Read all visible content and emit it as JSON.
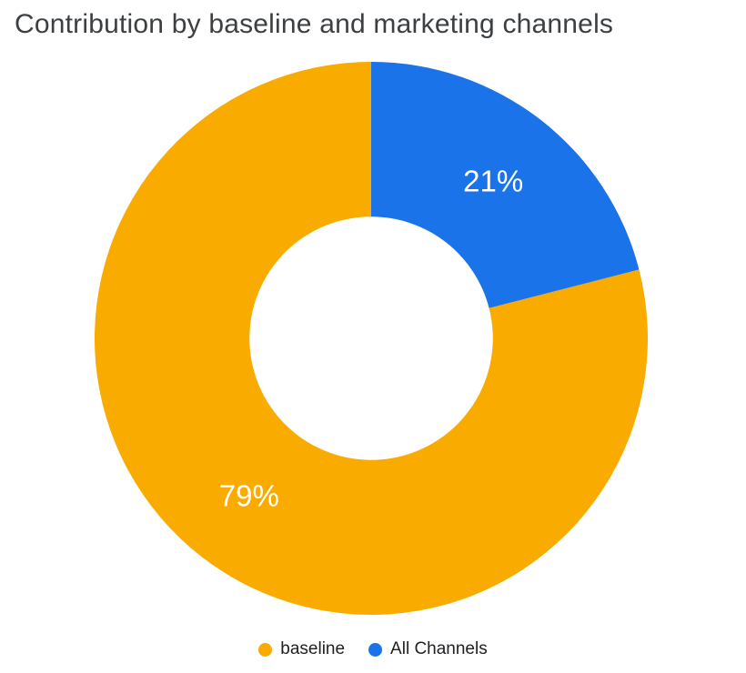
{
  "title": "Contribution by baseline and marketing channels",
  "chart_data": {
    "type": "pie",
    "subtype": "donut",
    "title": "Contribution by baseline and marketing channels",
    "categories": [
      "baseline",
      "All Channels"
    ],
    "values": [
      79,
      21
    ],
    "unit": "%",
    "slice_labels": [
      "79%",
      "21%"
    ],
    "colors": [
      "#F9AB00",
      "#1A73E8"
    ],
    "slice_label_color": "#FFFFFF",
    "hole_ratio": 0.44,
    "start_angle": "top",
    "winding": "counterclockwise",
    "legend_position": "bottom"
  },
  "legend": {
    "items": [
      {
        "label": "baseline",
        "color": "#F9AB00"
      },
      {
        "label": "All Channels",
        "color": "#1A73E8"
      }
    ]
  }
}
